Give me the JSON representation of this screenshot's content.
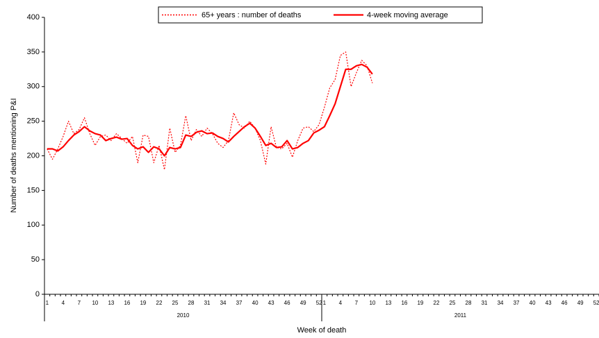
{
  "chart_data": {
    "type": "line",
    "x_label": "Week of death",
    "y_label": "Number of deaths mentioning P&I",
    "categories": [
      "1",
      null,
      null,
      "4",
      null,
      null,
      "7",
      null,
      null,
      "10",
      null,
      null,
      "13",
      null,
      null,
      "16",
      null,
      null,
      "19",
      null,
      null,
      "22",
      null,
      null,
      "25",
      null,
      null,
      "28",
      null,
      null,
      "31",
      null,
      null,
      "34",
      null,
      null,
      "37",
      null,
      null,
      "40",
      null,
      null,
      "43",
      null,
      null,
      "46",
      null,
      null,
      "49",
      null,
      null,
      "52",
      "1",
      null,
      null,
      "4",
      null,
      null,
      "7",
      null,
      null,
      "10",
      null,
      null,
      "13",
      null,
      null,
      "16",
      null,
      null,
      "19",
      null,
      null,
      "22",
      null,
      null,
      "25",
      null,
      null,
      "28",
      null,
      null,
      "31",
      null,
      null,
      "34",
      null,
      null,
      "37",
      null,
      null,
      "40",
      null,
      null,
      "43",
      null,
      null,
      "46",
      null,
      null,
      "49",
      null,
      null,
      "52"
    ],
    "groups": [
      "2010",
      "2011"
    ],
    "series": [
      {
        "name": "65+ years : number of deaths",
        "color": "#ff0000",
        "dash": true,
        "values": [
          210,
          195,
          210,
          228,
          250,
          232,
          238,
          255,
          232,
          215,
          228,
          230,
          222,
          232,
          225,
          218,
          228,
          190,
          230,
          228,
          190,
          215,
          180,
          240,
          205,
          215,
          258,
          222,
          238,
          228,
          240,
          232,
          218,
          212,
          222,
          262,
          245,
          240,
          250,
          240,
          222,
          188,
          242,
          212,
          210,
          218,
          198,
          222,
          240,
          242,
          235,
          245,
          270,
          298,
          310,
          345,
          350,
          300,
          320,
          338,
          330,
          305,
          null,
          null,
          null,
          null,
          null,
          null,
          null,
          null,
          null,
          null,
          null,
          null,
          null,
          null,
          null,
          null,
          null,
          null,
          null,
          null,
          null,
          null,
          null,
          null,
          null,
          null,
          null,
          null,
          null,
          null,
          null,
          null,
          null,
          null,
          null,
          null,
          null,
          null,
          null,
          null,
          null,
          null
        ]
      },
      {
        "name": "4-week moving average",
        "color": "#ff0000",
        "dash": false,
        "values": [
          210,
          210,
          207,
          213,
          222,
          230,
          235,
          242,
          236,
          232,
          230,
          222,
          225,
          227,
          224,
          225,
          215,
          210,
          213,
          205,
          213,
          210,
          200,
          212,
          210,
          212,
          230,
          228,
          234,
          236,
          232,
          233,
          228,
          225,
          220,
          228,
          235,
          242,
          247,
          240,
          228,
          215,
          218,
          212,
          213,
          222,
          210,
          212,
          218,
          222,
          233,
          237,
          242,
          258,
          275,
          300,
          325,
          325,
          330,
          332,
          328,
          318,
          null,
          null,
          null,
          null,
          null,
          null,
          null,
          null,
          null,
          null,
          null,
          null,
          null,
          null,
          null,
          null,
          null,
          null,
          null,
          null,
          null,
          null,
          null,
          null,
          null,
          null,
          null,
          null,
          null,
          null,
          null,
          null,
          null,
          null,
          null,
          null,
          null,
          null,
          null,
          null,
          null,
          null
        ]
      }
    ],
    "ylim": [
      0,
      400
    ],
    "yticks": [
      0,
      50,
      100,
      150,
      200,
      250,
      300,
      350,
      400
    ]
  }
}
